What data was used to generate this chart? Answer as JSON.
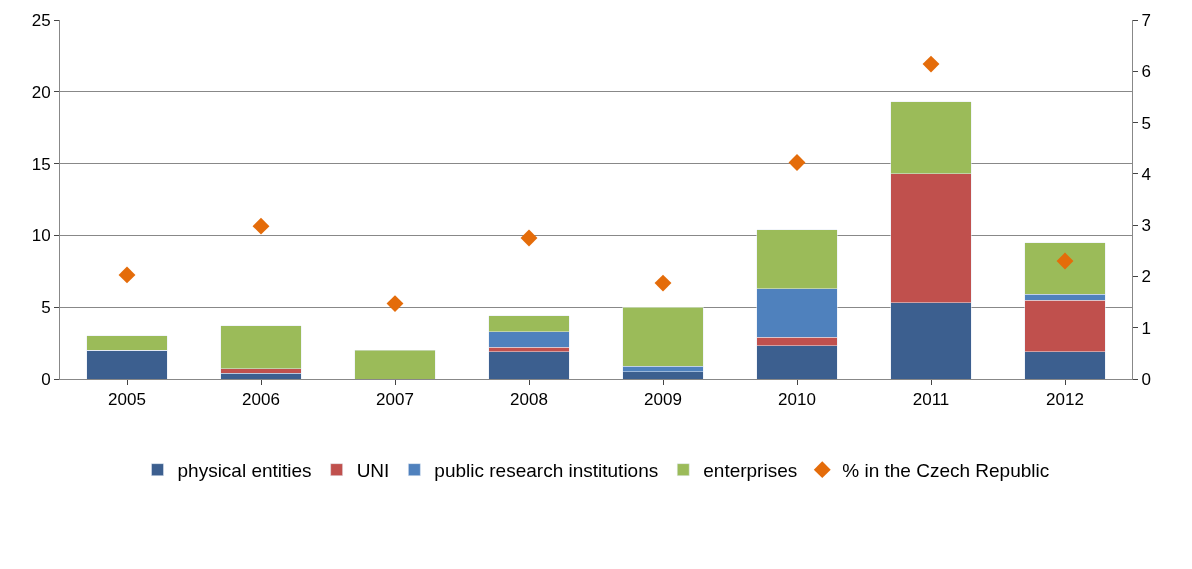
{
  "chart_data": {
    "type": "bar",
    "stacked": true,
    "categories": [
      "2005",
      "2006",
      "2007",
      "2008",
      "2009",
      "2010",
      "2011",
      "2012"
    ],
    "series": [
      {
        "name": "physical entities",
        "color": "#3c5f8f",
        "values": [
          2.0,
          0.4,
          0,
          1.9,
          0.5,
          2.3,
          5.3,
          1.9
        ]
      },
      {
        "name": "UNI",
        "color": "#c0504d",
        "values": [
          0,
          0.3,
          0,
          0.3,
          0,
          0.6,
          9.0,
          3.6
        ]
      },
      {
        "name": "public research institutions",
        "color": "#4f81bd",
        "values": [
          0,
          0,
          0,
          1.1,
          0.4,
          3.4,
          0,
          0.4
        ]
      },
      {
        "name": "enterprises",
        "color": "#9bbb59",
        "values": [
          1.0,
          3.0,
          2.0,
          1.1,
          4.1,
          4.1,
          5.0,
          3.6
        ]
      },
      {
        "name": "% in the Czech Republic",
        "color": "#e46c0a",
        "type": "scatter",
        "axis": "y2",
        "marker": "diamond",
        "values": [
          2.03,
          2.98,
          1.47,
          2.75,
          1.87,
          4.22,
          6.14,
          2.3
        ]
      }
    ],
    "ylim": [
      0,
      25
    ],
    "yticks": [
      0,
      5,
      10,
      15,
      20,
      25
    ],
    "y2lim": [
      0,
      7
    ],
    "y2ticks": [
      0,
      1,
      2,
      3,
      4,
      5,
      6,
      7
    ],
    "grid": "y",
    "legend": "bottom"
  }
}
